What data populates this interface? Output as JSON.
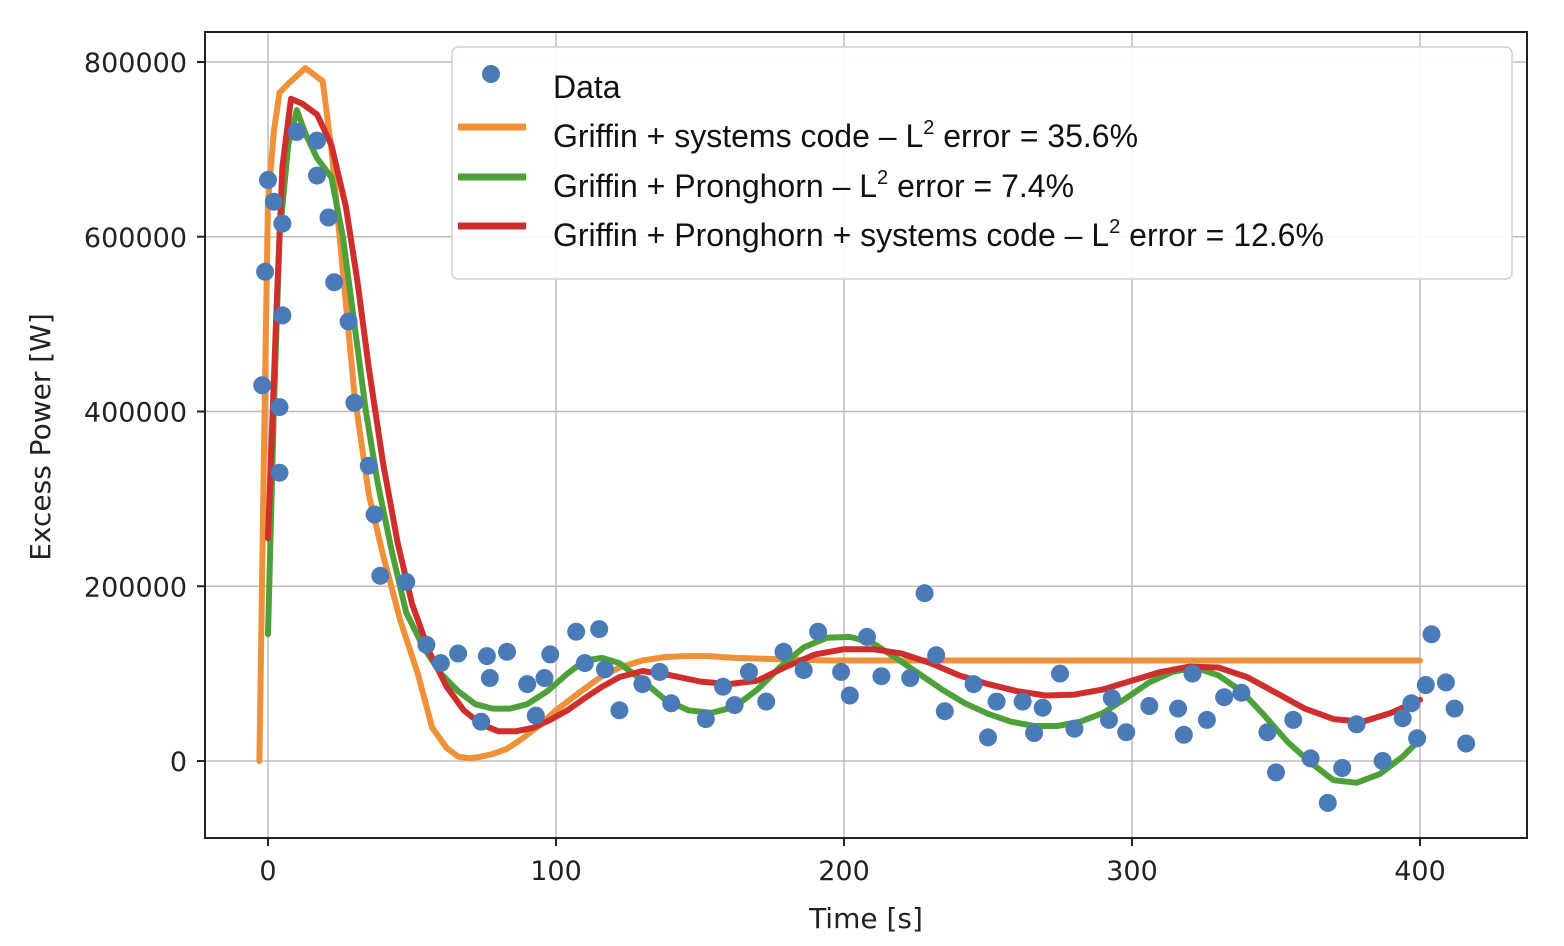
{
  "chart_data": {
    "type": "scatter",
    "xlabel": "Time [s]",
    "ylabel": "Excess Power [W]",
    "xlim": [
      -22,
      450
    ],
    "ylim": [
      -88000,
      832000
    ],
    "xticks": [
      0,
      100,
      200,
      300,
      400
    ],
    "xtick_labels": [
      "0",
      "100",
      "200",
      "300",
      "400"
    ],
    "yticks": [
      0,
      200000,
      400000,
      600000,
      800000
    ],
    "ytick_labels": [
      "0",
      "200000",
      "400000",
      "600000",
      "800000"
    ],
    "grid": true,
    "legend_position": "top-right",
    "colors": {
      "data": "#4a7ab8",
      "orange": "#f0913a",
      "green": "#4ea138",
      "red": "#cf2f2c",
      "grid": "#bdbdbd",
      "frame": "#222222"
    },
    "legend": [
      {
        "key": "data",
        "label": "Data",
        "sup": "",
        "suffix": ""
      },
      {
        "key": "orange",
        "label": "Griffin + systems code – L",
        "sup": "2",
        "suffix": " error = 35.6%"
      },
      {
        "key": "green",
        "label": "Griffin + Pronghorn – L",
        "sup": "2",
        "suffix": " error = 7.4%"
      },
      {
        "key": "red",
        "label": "Griffin + Pronghorn + systems code – L",
        "sup": "2",
        "suffix": " error = 12.6%"
      }
    ],
    "scatter": {
      "name": "Data",
      "points": [
        [
          -2,
          430000
        ],
        [
          -1,
          560000
        ],
        [
          0,
          665000
        ],
        [
          2,
          640000
        ],
        [
          4,
          330000
        ],
        [
          4,
          405000
        ],
        [
          5,
          615000
        ],
        [
          5,
          510000
        ],
        [
          10,
          720000
        ],
        [
          17,
          710000
        ],
        [
          17,
          670000
        ],
        [
          21,
          622000
        ],
        [
          23,
          548000
        ],
        [
          28,
          503000
        ],
        [
          30,
          410000
        ],
        [
          35,
          338000
        ],
        [
          37,
          282000
        ],
        [
          39,
          212000
        ],
        [
          48,
          205000
        ],
        [
          55,
          133000
        ],
        [
          60,
          112000
        ],
        [
          66,
          123000
        ],
        [
          74,
          45000
        ],
        [
          76,
          120000
        ],
        [
          77,
          95000
        ],
        [
          83,
          125000
        ],
        [
          90,
          88000
        ],
        [
          93,
          52000
        ],
        [
          96,
          95000
        ],
        [
          98,
          122000
        ],
        [
          107,
          148000
        ],
        [
          110,
          112000
        ],
        [
          115,
          151000
        ],
        [
          117,
          105000
        ],
        [
          122,
          58000
        ],
        [
          130,
          88000
        ],
        [
          136,
          102000
        ],
        [
          140,
          66000
        ],
        [
          152,
          48000
        ],
        [
          158,
          85000
        ],
        [
          162,
          64000
        ],
        [
          167,
          102000
        ],
        [
          173,
          68000
        ],
        [
          179,
          125000
        ],
        [
          186,
          104000
        ],
        [
          191,
          148000
        ],
        [
          199,
          102000
        ],
        [
          202,
          75000
        ],
        [
          208,
          142000
        ],
        [
          213,
          97000
        ],
        [
          223,
          95000
        ],
        [
          228,
          192000
        ],
        [
          232,
          121000
        ],
        [
          235,
          57000
        ],
        [
          245,
          88000
        ],
        [
          250,
          27000
        ],
        [
          253,
          68000
        ],
        [
          262,
          68000
        ],
        [
          266,
          32000
        ],
        [
          269,
          61000
        ],
        [
          275,
          100000
        ],
        [
          280,
          37000
        ],
        [
          292,
          47000
        ],
        [
          293,
          72000
        ],
        [
          298,
          33000
        ],
        [
          306,
          63000
        ],
        [
          316,
          60000
        ],
        [
          318,
          30000
        ],
        [
          321,
          100000
        ],
        [
          326,
          47000
        ],
        [
          332,
          73000
        ],
        [
          338,
          78000
        ],
        [
          347,
          33000
        ],
        [
          350,
          -13000
        ],
        [
          356,
          47000
        ],
        [
          362,
          3000
        ],
        [
          368,
          -48000
        ],
        [
          373,
          -8000
        ],
        [
          378,
          42000
        ],
        [
          387,
          0
        ],
        [
          394,
          49000
        ],
        [
          397,
          66000
        ],
        [
          399,
          26000
        ],
        [
          402,
          87000
        ],
        [
          404,
          145000
        ],
        [
          409,
          90000
        ],
        [
          412,
          60000
        ],
        [
          416,
          20000
        ]
      ]
    },
    "series": [
      {
        "key": "orange",
        "x": [
          -3,
          -1,
          0,
          2,
          4,
          7,
          13,
          19,
          22,
          26,
          30,
          35,
          40,
          46,
          52,
          57,
          62,
          66,
          70,
          74,
          78,
          83,
          88,
          94,
          100,
          108,
          115,
          122,
          130,
          138,
          145,
          153,
          162,
          172,
          182,
          195,
          210,
          225,
          250,
          275,
          300,
          325,
          350,
          375,
          400
        ],
        "y": [
          0,
          440000,
          640000,
          720000,
          765000,
          775000,
          793000,
          778000,
          700000,
          560000,
          420000,
          305000,
          235000,
          160000,
          100000,
          38000,
          15000,
          5000,
          3000,
          5000,
          8000,
          14000,
          25000,
          40000,
          58000,
          78000,
          95000,
          107000,
          115000,
          119000,
          120000,
          120000,
          118000,
          117000,
          116000,
          115000,
          115000,
          115000,
          115000,
          115000,
          115000,
          115000,
          115000,
          115000,
          115000
        ]
      },
      {
        "key": "green",
        "x": [
          0,
          2,
          4,
          7,
          10,
          13,
          17,
          22,
          26,
          30,
          34,
          38,
          43,
          48,
          54,
          60,
          66,
          72,
          78,
          84,
          90,
          97,
          104,
          110,
          116,
          122,
          130,
          138,
          146,
          154,
          162,
          170,
          178,
          186,
          194,
          202,
          210,
          218,
          226,
          234,
          242,
          250,
          258,
          266,
          274,
          282,
          290,
          298,
          306,
          314,
          322,
          330,
          338,
          346,
          354,
          362,
          370,
          378,
          386,
          394,
          400
        ],
        "y": [
          145000,
          400000,
          600000,
          705000,
          745000,
          718000,
          690000,
          668000,
          600000,
          500000,
          400000,
          320000,
          240000,
          170000,
          130000,
          100000,
          80000,
          65000,
          60000,
          60000,
          65000,
          80000,
          100000,
          115000,
          118000,
          112000,
          92000,
          70000,
          58000,
          55000,
          62000,
          82000,
          108000,
          130000,
          141000,
          142000,
          135000,
          118000,
          100000,
          82000,
          66000,
          54000,
          45000,
          40000,
          40000,
          45000,
          55000,
          72000,
          90000,
          102000,
          107000,
          98000,
          80000,
          52000,
          22000,
          -2000,
          -22000,
          -25000,
          -15000,
          5000,
          25000
        ]
      },
      {
        "key": "red",
        "x": [
          0,
          3,
          5,
          8,
          12,
          17,
          22,
          27,
          31,
          35,
          40,
          45,
          50,
          56,
          62,
          68,
          74,
          80,
          86,
          92,
          98,
          104,
          110,
          116,
          122,
          130,
          140,
          150,
          160,
          170,
          180,
          190,
          200,
          210,
          220,
          230,
          240,
          250,
          260,
          270,
          280,
          290,
          300,
          310,
          320,
          330,
          340,
          350,
          360,
          370,
          380,
          390,
          400
        ],
        "y": [
          255000,
          520000,
          680000,
          758000,
          752000,
          740000,
          705000,
          635000,
          550000,
          450000,
          340000,
          250000,
          180000,
          125000,
          85000,
          58000,
          42000,
          34000,
          34000,
          38000,
          47000,
          58000,
          72000,
          85000,
          96000,
          103000,
          98000,
          91000,
          88000,
          92000,
          108000,
          122000,
          128000,
          128000,
          123000,
          112000,
          98000,
          88000,
          80000,
          75000,
          76000,
          82000,
          92000,
          102000,
          108000,
          107000,
          96000,
          78000,
          60000,
          48000,
          45000,
          55000,
          70000
        ]
      }
    ]
  }
}
